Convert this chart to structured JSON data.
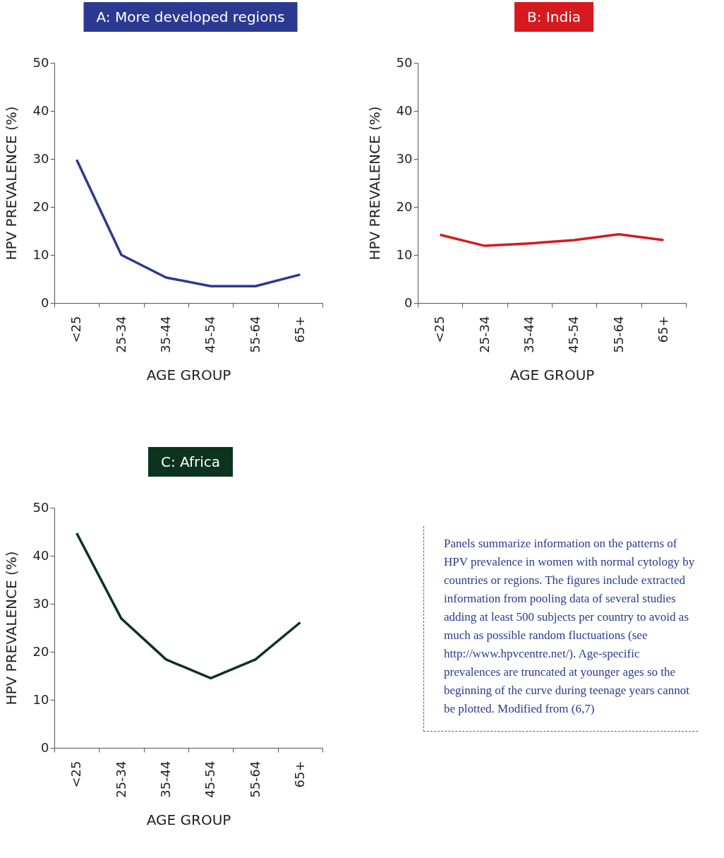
{
  "chart_data": [
    {
      "type": "line",
      "title": "A: More developed regions",
      "xlabel": "AGE GROUP",
      "ylabel": "HPV PREVALENCE (%)",
      "categories": [
        "<25",
        "25-34",
        "35-44",
        "45-54",
        "55-64",
        "65+"
      ],
      "series": [
        {
          "color": "#2b3990",
          "values": [
            29.8,
            10,
            5.3,
            3.5,
            3.5,
            5.9
          ]
        }
      ],
      "ylim": [
        0,
        50
      ],
      "yticks": [
        0,
        10,
        20,
        30,
        40,
        50
      ]
    },
    {
      "type": "line",
      "title": "B: India",
      "xlabel": "AGE GROUP",
      "ylabel": "HPV PREVALENCE (%)",
      "categories": [
        "<25",
        "25-34",
        "35-44",
        "45-54",
        "55-64",
        "65+"
      ],
      "series": [
        {
          "color": "#d71920",
          "values": [
            14.2,
            11.9,
            12.4,
            13.1,
            14.3,
            13.1
          ]
        }
      ],
      "ylim": [
        0,
        50
      ],
      "yticks": [
        0,
        10,
        20,
        30,
        40,
        50
      ]
    },
    {
      "type": "line",
      "title": "C: Africa",
      "xlabel": "AGE GROUP",
      "ylabel": "HPV PREVALENCE (%)",
      "categories": [
        "<25",
        "25-34",
        "35-44",
        "45-54",
        "55-64",
        "65+"
      ],
      "series": [
        {
          "color": "#0b3320",
          "values": [
            44.7,
            26.9,
            18.4,
            14.5,
            18.4,
            26.1
          ]
        }
      ],
      "ylim": [
        0,
        50
      ],
      "yticks": [
        0,
        10,
        20,
        30,
        40,
        50
      ]
    },
    {
      "type": "other",
      "annotations": [
        "Panels summarize information on the patterns of HPV prevalence in women with normal cytology by countries or regions. The figures include extracted information from pooling data of several studies adding at least 500 subjects per country to avoid as much as possible random fluctuations (see http://www.hpvcentre.net/). Age-specific prevalences are truncated at younger ages so the beginning of the curve during teenage years cannot be plotted. Modified from (6,7)"
      ]
    }
  ]
}
